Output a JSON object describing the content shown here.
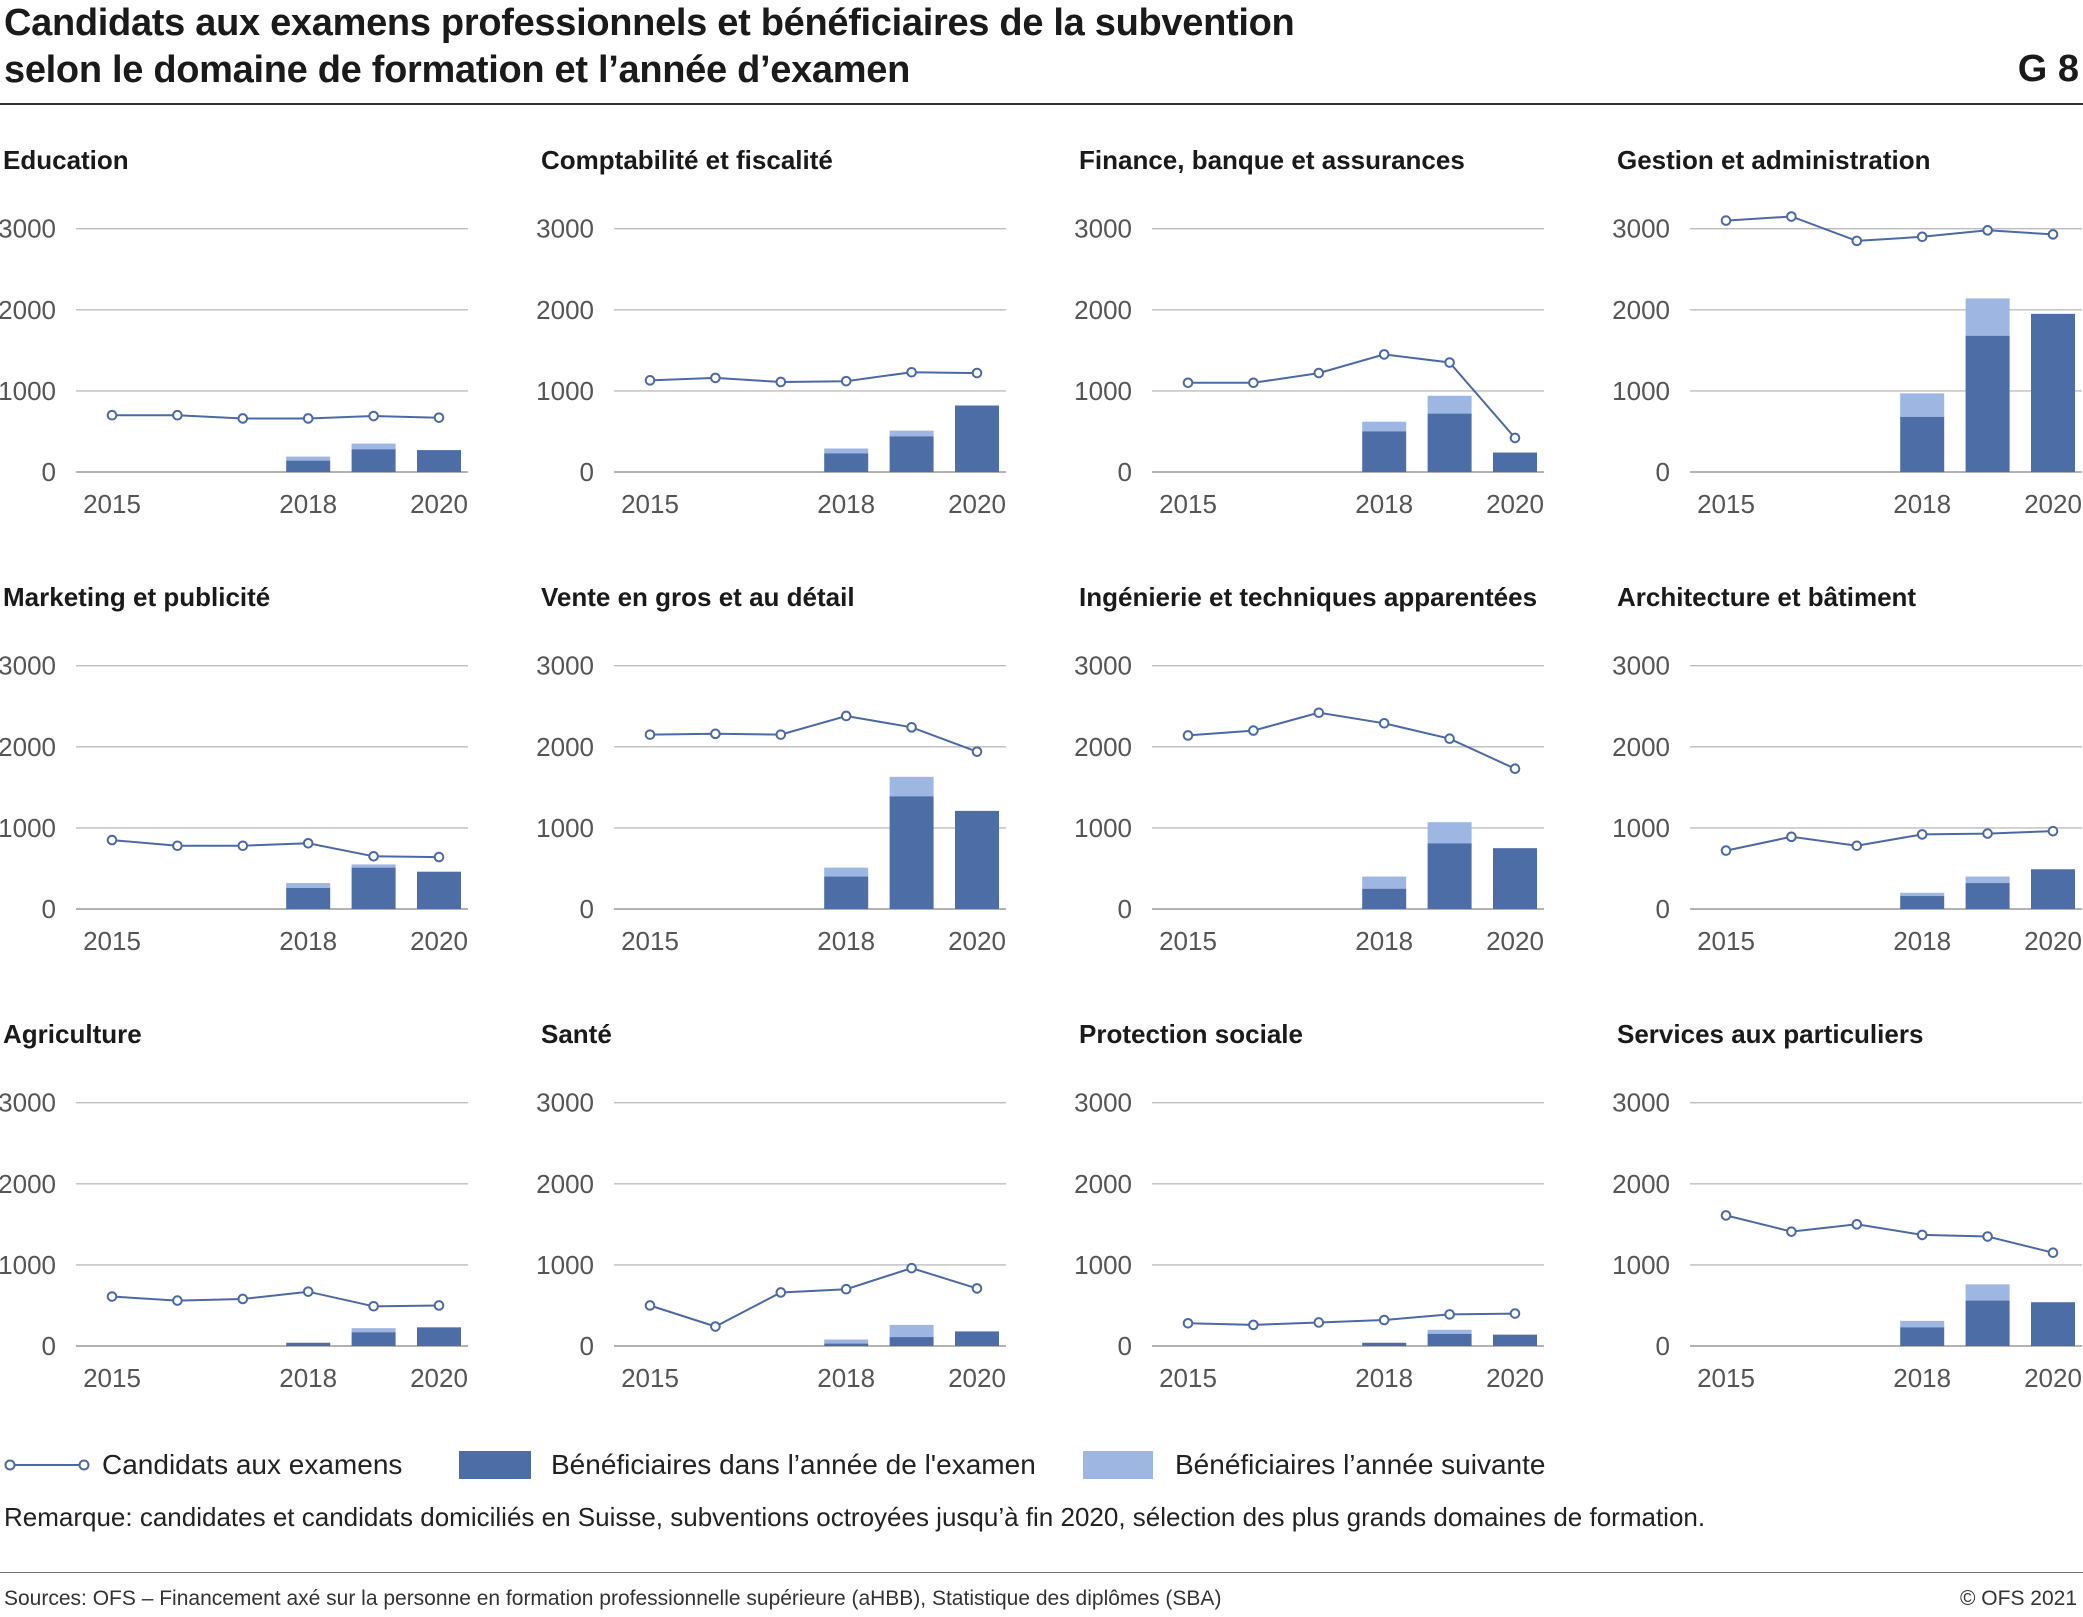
{
  "header": {
    "title_line1": "Candidats aux examens professionnels et bénéficiaires de la subvention",
    "title_line2": "selon le domaine de formation et l’année d’examen",
    "graph_number": "G 8"
  },
  "legend": {
    "candidates": "Candidats aux examens",
    "beneficiaries_exam_year": "Bénéficiaires dans l’année de l'examen",
    "beneficiaries_next_year": "Bénéficiaires l’année suivante"
  },
  "colors": {
    "line": "#4a6aa5",
    "bar_dark": "#4c6da6",
    "bar_light": "#9db6e2",
    "grid": "#bdbdbd",
    "axis_text": "#555555"
  },
  "remark": "Remarque: candidates et candidats domiciliés en Suisse, subventions octroyées jusqu’à fin 2020, sélection des plus grands domaines de formation.",
  "footer": {
    "sources": "Sources: OFS – Financement axé sur la personne en formation professionnelle supérieure (aHBB), Statistique des diplômes (SBA)",
    "copyright": "© OFS 2021"
  },
  "chart_data": [
    {
      "type": "bar",
      "title": "Education",
      "x": [
        2015,
        2016,
        2017,
        2018,
        2019,
        2020
      ],
      "x_tick_labels": [
        "2015",
        "2018",
        "2020"
      ],
      "y_ticks": [
        0,
        1000,
        2000,
        3000
      ],
      "ylim": [
        0,
        3200
      ],
      "series": [
        {
          "name": "Candidats aux examens",
          "type": "line",
          "values": [
            700,
            700,
            660,
            660,
            690,
            670
          ]
        },
        {
          "name": "Bénéficiaires dans l’année de l'examen",
          "type": "bar",
          "values": [
            null,
            null,
            null,
            140,
            280,
            270
          ]
        },
        {
          "name": "Bénéficiaires l’année suivante",
          "type": "bar",
          "values": [
            null,
            null,
            null,
            50,
            70,
            0
          ]
        }
      ]
    },
    {
      "type": "bar",
      "title": "Comptabilité et fiscalité",
      "x": [
        2015,
        2016,
        2017,
        2018,
        2019,
        2020
      ],
      "x_tick_labels": [
        "2015",
        "2018",
        "2020"
      ],
      "y_ticks": [
        0,
        1000,
        2000,
        3000
      ],
      "ylim": [
        0,
        3200
      ],
      "series": [
        {
          "name": "Candidats aux examens",
          "type": "line",
          "values": [
            1130,
            1160,
            1110,
            1120,
            1230,
            1220
          ]
        },
        {
          "name": "Bénéficiaires dans l’année de l'examen",
          "type": "bar",
          "values": [
            null,
            null,
            null,
            230,
            440,
            820
          ]
        },
        {
          "name": "Bénéficiaires l’année suivante",
          "type": "bar",
          "values": [
            null,
            null,
            null,
            60,
            70,
            0
          ]
        }
      ]
    },
    {
      "type": "bar",
      "title": "Finance, banque et assurances",
      "x": [
        2015,
        2016,
        2017,
        2018,
        2019,
        2020
      ],
      "x_tick_labels": [
        "2015",
        "2018",
        "2020"
      ],
      "y_ticks": [
        0,
        1000,
        2000,
        3000
      ],
      "ylim": [
        0,
        3200
      ],
      "series": [
        {
          "name": "Candidats aux examens",
          "type": "line",
          "values": [
            1100,
            1100,
            1220,
            1450,
            1350,
            420
          ]
        },
        {
          "name": "Bénéficiaires dans l’année de l'examen",
          "type": "bar",
          "values": [
            null,
            null,
            null,
            500,
            720,
            240
          ]
        },
        {
          "name": "Bénéficiaires l’année suivante",
          "type": "bar",
          "values": [
            null,
            null,
            null,
            120,
            220,
            0
          ]
        }
      ]
    },
    {
      "type": "bar",
      "title": "Gestion et administration",
      "x": [
        2015,
        2016,
        2017,
        2018,
        2019,
        2020
      ],
      "x_tick_labels": [
        "2015",
        "2018",
        "2020"
      ],
      "y_ticks": [
        0,
        1000,
        2000,
        3000
      ],
      "ylim": [
        0,
        3200
      ],
      "series": [
        {
          "name": "Candidats aux examens",
          "type": "line",
          "values": [
            3100,
            3150,
            2850,
            2900,
            2980,
            2930
          ]
        },
        {
          "name": "Bénéficiaires dans l’année de l'examen",
          "type": "bar",
          "values": [
            null,
            null,
            null,
            680,
            1680,
            1950
          ]
        },
        {
          "name": "Bénéficiaires l’année suivante",
          "type": "bar",
          "values": [
            null,
            null,
            null,
            290,
            460,
            0
          ]
        }
      ]
    },
    {
      "type": "bar",
      "title": "Marketing et publicité",
      "x": [
        2015,
        2016,
        2017,
        2018,
        2019,
        2020
      ],
      "x_tick_labels": [
        "2015",
        "2018",
        "2020"
      ],
      "y_ticks": [
        0,
        1000,
        2000,
        3000
      ],
      "ylim": [
        0,
        3200
      ],
      "series": [
        {
          "name": "Candidats aux examens",
          "type": "line",
          "values": [
            850,
            780,
            780,
            810,
            650,
            640
          ]
        },
        {
          "name": "Bénéficiaires dans l’année de l'examen",
          "type": "bar",
          "values": [
            null,
            null,
            null,
            260,
            510,
            460
          ]
        },
        {
          "name": "Bénéficiaires l’année suivante",
          "type": "bar",
          "values": [
            null,
            null,
            null,
            60,
            40,
            0
          ]
        }
      ]
    },
    {
      "type": "bar",
      "title": "Vente en gros et au détail",
      "x": [
        2015,
        2016,
        2017,
        2018,
        2019,
        2020
      ],
      "x_tick_labels": [
        "2015",
        "2018",
        "2020"
      ],
      "y_ticks": [
        0,
        1000,
        2000,
        3000
      ],
      "ylim": [
        0,
        3200
      ],
      "series": [
        {
          "name": "Candidats aux examens",
          "type": "line",
          "values": [
            2150,
            2160,
            2150,
            2380,
            2240,
            1940
          ]
        },
        {
          "name": "Bénéficiaires dans l’année de l'examen",
          "type": "bar",
          "values": [
            null,
            null,
            null,
            400,
            1390,
            1210
          ]
        },
        {
          "name": "Bénéficiaires l’année suivante",
          "type": "bar",
          "values": [
            null,
            null,
            null,
            110,
            240,
            0
          ]
        }
      ]
    },
    {
      "type": "bar",
      "title": "Ingénierie et techniques apparentées",
      "x": [
        2015,
        2016,
        2017,
        2018,
        2019,
        2020
      ],
      "x_tick_labels": [
        "2015",
        "2018",
        "2020"
      ],
      "y_ticks": [
        0,
        1000,
        2000,
        3000
      ],
      "ylim": [
        0,
        3200
      ],
      "series": [
        {
          "name": "Candidats aux examens",
          "type": "line",
          "values": [
            2140,
            2200,
            2420,
            2290,
            2100,
            1730
          ]
        },
        {
          "name": "Bénéficiaires dans l’année de l'examen",
          "type": "bar",
          "values": [
            null,
            null,
            null,
            250,
            810,
            750
          ]
        },
        {
          "name": "Bénéficiaires l’année suivante",
          "type": "bar",
          "values": [
            null,
            null,
            null,
            150,
            260,
            0
          ]
        }
      ]
    },
    {
      "type": "bar",
      "title": "Architecture et bâtiment",
      "x": [
        2015,
        2016,
        2017,
        2018,
        2019,
        2020
      ],
      "x_tick_labels": [
        "2015",
        "2018",
        "2020"
      ],
      "y_ticks": [
        0,
        1000,
        2000,
        3000
      ],
      "ylim": [
        0,
        3200
      ],
      "series": [
        {
          "name": "Candidats aux examens",
          "type": "line",
          "values": [
            720,
            890,
            780,
            920,
            930,
            960
          ]
        },
        {
          "name": "Bénéficiaires dans l’année de l'examen",
          "type": "bar",
          "values": [
            null,
            null,
            null,
            160,
            320,
            490
          ]
        },
        {
          "name": "Bénéficiaires l’année suivante",
          "type": "bar",
          "values": [
            null,
            null,
            null,
            40,
            80,
            0
          ]
        }
      ]
    },
    {
      "type": "bar",
      "title": "Agriculture",
      "x": [
        2015,
        2016,
        2017,
        2018,
        2019,
        2020
      ],
      "x_tick_labels": [
        "2015",
        "2018",
        "2020"
      ],
      "y_ticks": [
        0,
        1000,
        2000,
        3000
      ],
      "ylim": [
        0,
        3200
      ],
      "series": [
        {
          "name": "Candidats aux examens",
          "type": "line",
          "values": [
            610,
            560,
            580,
            670,
            490,
            500
          ]
        },
        {
          "name": "Bénéficiaires dans l’année de l'examen",
          "type": "bar",
          "values": [
            null,
            null,
            null,
            40,
            170,
            230
          ]
        },
        {
          "name": "Bénéficiaires l’année suivante",
          "type": "bar",
          "values": [
            null,
            null,
            null,
            0,
            50,
            0
          ]
        }
      ]
    },
    {
      "type": "bar",
      "title": "Santé",
      "x": [
        2015,
        2016,
        2017,
        2018,
        2019,
        2020
      ],
      "x_tick_labels": [
        "2015",
        "2018",
        "2020"
      ],
      "y_ticks": [
        0,
        1000,
        2000,
        3000
      ],
      "ylim": [
        0,
        3200
      ],
      "series": [
        {
          "name": "Candidats aux examens",
          "type": "line",
          "values": [
            500,
            240,
            660,
            700,
            960,
            710
          ]
        },
        {
          "name": "Bénéficiaires dans l’année de l'examen",
          "type": "bar",
          "values": [
            null,
            null,
            null,
            30,
            110,
            180
          ]
        },
        {
          "name": "Bénéficiaires l’année suivante",
          "type": "bar",
          "values": [
            null,
            null,
            null,
            50,
            150,
            0
          ]
        }
      ]
    },
    {
      "type": "bar",
      "title": "Protection sociale",
      "x": [
        2015,
        2016,
        2017,
        2018,
        2019,
        2020
      ],
      "x_tick_labels": [
        "2015",
        "2018",
        "2020"
      ],
      "y_ticks": [
        0,
        1000,
        2000,
        3000
      ],
      "ylim": [
        0,
        3200
      ],
      "series": [
        {
          "name": "Candidats aux examens",
          "type": "line",
          "values": [
            280,
            260,
            290,
            320,
            390,
            400
          ]
        },
        {
          "name": "Bénéficiaires dans l’année de l'examen",
          "type": "bar",
          "values": [
            null,
            null,
            null,
            40,
            150,
            140
          ]
        },
        {
          "name": "Bénéficiaires l’année suivante",
          "type": "bar",
          "values": [
            null,
            null,
            null,
            0,
            50,
            0
          ]
        }
      ]
    },
    {
      "type": "bar",
      "title": "Services aux particuliers",
      "x": [
        2015,
        2016,
        2017,
        2018,
        2019,
        2020
      ],
      "x_tick_labels": [
        "2015",
        "2018",
        "2020"
      ],
      "y_ticks": [
        0,
        1000,
        2000,
        3000
      ],
      "ylim": [
        0,
        3200
      ],
      "series": [
        {
          "name": "Candidats aux examens",
          "type": "line",
          "values": [
            1610,
            1410,
            1500,
            1370,
            1350,
            1150
          ]
        },
        {
          "name": "Bénéficiaires dans l’année de l'examen",
          "type": "bar",
          "values": [
            null,
            null,
            null,
            230,
            560,
            540
          ]
        },
        {
          "name": "Bénéficiaires l’année suivante",
          "type": "bar",
          "values": [
            null,
            null,
            null,
            80,
            200,
            0
          ]
        }
      ]
    }
  ]
}
